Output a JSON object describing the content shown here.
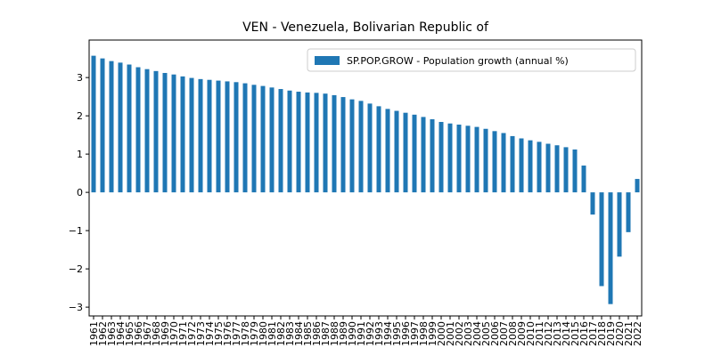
{
  "chart_data": {
    "type": "bar",
    "title": "VEN - Venezuela, Bolivarian Republic of",
    "categories": [
      "1961",
      "1962",
      "1963",
      "1964",
      "1965",
      "1966",
      "1967",
      "1968",
      "1969",
      "1970",
      "1971",
      "1972",
      "1973",
      "1974",
      "1975",
      "1976",
      "1977",
      "1978",
      "1979",
      "1980",
      "1981",
      "1982",
      "1983",
      "1984",
      "1985",
      "1986",
      "1987",
      "1988",
      "1989",
      "1990",
      "1991",
      "1992",
      "1993",
      "1994",
      "1995",
      "1996",
      "1997",
      "1998",
      "1999",
      "2000",
      "2001",
      "2002",
      "2003",
      "2004",
      "2005",
      "2006",
      "2007",
      "2008",
      "2009",
      "2010",
      "2011",
      "2012",
      "2013",
      "2014",
      "2015",
      "2016",
      "2017",
      "2018",
      "2019",
      "2020",
      "2021",
      "2022"
    ],
    "series": [
      {
        "name": "SP.POP.GROW - Population growth (annual %)",
        "color": "#1f77b4",
        "values": [
          3.57,
          3.5,
          3.43,
          3.39,
          3.34,
          3.27,
          3.22,
          3.17,
          3.12,
          3.08,
          3.03,
          2.99,
          2.96,
          2.94,
          2.92,
          2.9,
          2.88,
          2.85,
          2.81,
          2.78,
          2.74,
          2.7,
          2.66,
          2.63,
          2.61,
          2.6,
          2.58,
          2.54,
          2.49,
          2.43,
          2.39,
          2.32,
          2.25,
          2.18,
          2.13,
          2.08,
          2.03,
          1.97,
          1.91,
          1.84,
          1.8,
          1.77,
          1.74,
          1.71,
          1.66,
          1.6,
          1.55,
          1.47,
          1.41,
          1.36,
          1.32,
          1.27,
          1.23,
          1.18,
          1.12,
          0.7,
          -0.58,
          -2.45,
          -2.92,
          -1.68,
          -1.04,
          0.35
        ]
      }
    ],
    "ylim": [
      -3.23,
      3.98
    ],
    "yticks": [
      {
        "value": -3,
        "label": "−3"
      },
      {
        "value": -2,
        "label": "−2"
      },
      {
        "value": -1,
        "label": "−1"
      },
      0,
      1,
      2,
      3
    ],
    "legend": "upper right"
  }
}
